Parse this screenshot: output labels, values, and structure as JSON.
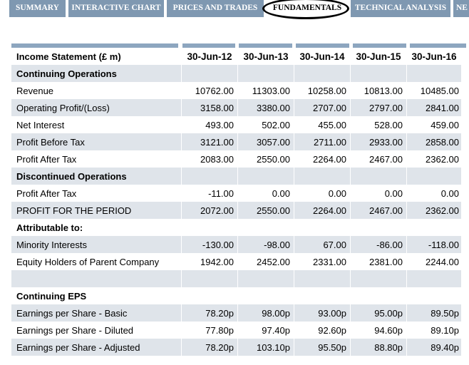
{
  "tabs": [
    {
      "label": "SUMMARY",
      "active": false
    },
    {
      "label": "INTERACTIVE CHART",
      "active": false
    },
    {
      "label": "PRICES AND TRADES",
      "active": false
    },
    {
      "label": "FUNDAMENTALS",
      "active": true
    },
    {
      "label": "TECHNICAL ANALYSIS",
      "active": false
    },
    {
      "label": "NE",
      "active": false
    }
  ],
  "table": {
    "title": "Income Statement  (£ m)",
    "columns": [
      "30-Jun-12",
      "30-Jun-13",
      "30-Jun-14",
      "30-Jun-15",
      "30-Jun-16"
    ],
    "sections": {
      "continuing": "Continuing Operations",
      "discontinued": "Discontinued Operations",
      "attributable": "Attributable to:",
      "eps": "Continuing EPS"
    },
    "rows": {
      "revenue": {
        "label": "Revenue",
        "values": [
          "10762.00",
          "11303.00",
          "10258.00",
          "10813.00",
          "10485.00"
        ]
      },
      "operating_profit": {
        "label": "Operating Profit/(Loss)",
        "values": [
          "3158.00",
          "3380.00",
          "2707.00",
          "2797.00",
          "2841.00"
        ]
      },
      "net_interest": {
        "label": "Net Interest",
        "values": [
          "493.00",
          "502.00",
          "455.00",
          "528.00",
          "459.00"
        ]
      },
      "profit_before_tax": {
        "label": "Profit Before Tax",
        "values": [
          "3121.00",
          "3057.00",
          "2711.00",
          "2933.00",
          "2858.00"
        ]
      },
      "profit_after_tax": {
        "label": "Profit After Tax",
        "values": [
          "2083.00",
          "2550.00",
          "2264.00",
          "2467.00",
          "2362.00"
        ]
      },
      "disc_profit_after_tax": {
        "label": "Profit After Tax",
        "values": [
          "-11.00",
          "0.00",
          "0.00",
          "0.00",
          "0.00"
        ]
      },
      "profit_for_period": {
        "label": "PROFIT FOR THE PERIOD",
        "values": [
          "2072.00",
          "2550.00",
          "2264.00",
          "2467.00",
          "2362.00"
        ]
      },
      "minority_interests": {
        "label": "Minority Interests",
        "values": [
          "-130.00",
          "-98.00",
          "67.00",
          "-86.00",
          "-118.00"
        ]
      },
      "equity_holders": {
        "label": "Equity Holders of Parent Company",
        "values": [
          "1942.00",
          "2452.00",
          "2331.00",
          "2381.00",
          "2244.00"
        ]
      },
      "eps_basic": {
        "label": "Earnings per Share - Basic",
        "values": [
          "78.20p",
          "98.00p",
          "93.00p",
          "95.00p",
          "89.50p"
        ]
      },
      "eps_diluted": {
        "label": "Earnings per Share - Diluted",
        "values": [
          "77.80p",
          "97.40p",
          "92.60p",
          "94.60p",
          "89.10p"
        ]
      },
      "eps_adjusted": {
        "label": "Earnings per Share - Adjusted",
        "values": [
          "78.20p",
          "103.10p",
          "95.50p",
          "88.80p",
          "89.40p"
        ]
      }
    }
  },
  "colors": {
    "tab_bg": "#7f98b1",
    "row_alt": "#dfe4ea",
    "column_bar": "#8da6bf"
  }
}
